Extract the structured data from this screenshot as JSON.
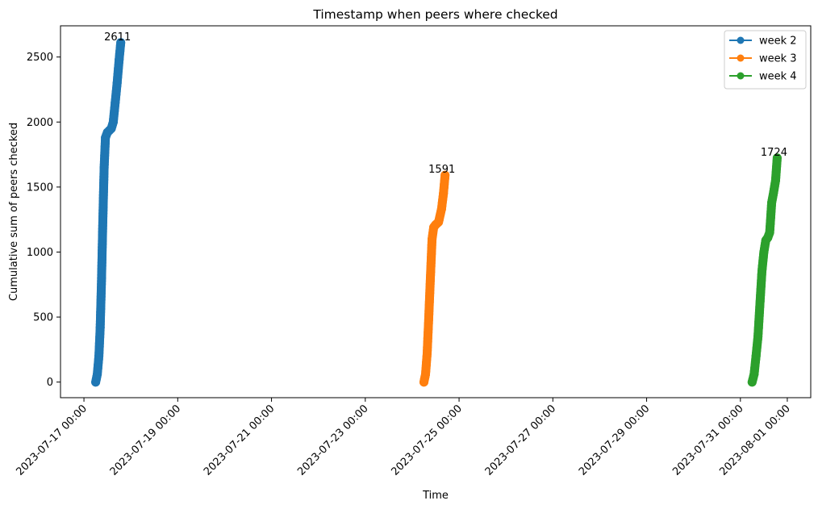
{
  "chart_data": {
    "type": "line",
    "title": "Timestamp when peers where checked",
    "xlabel": "Time",
    "ylabel": "Cumulative sum of peers checked",
    "xlim": [
      "2023-07-16 12:00",
      "2023-08-01 12:00"
    ],
    "ylim": [
      -120,
      2740
    ],
    "xticks": [
      "2023-07-17 00:00",
      "2023-07-19 00:00",
      "2023-07-21 00:00",
      "2023-07-23 00:00",
      "2023-07-25 00:00",
      "2023-07-27 00:00",
      "2023-07-29 00:00",
      "2023-07-31 00:00",
      "2023-08-01 00:00"
    ],
    "yticks": [
      0,
      500,
      1000,
      1500,
      2000,
      2500
    ],
    "grid": false,
    "legend_position": "top-right",
    "series": [
      {
        "name": "week 2",
        "color": "#1f77b4",
        "marker": "circle",
        "points": [
          [
            "2023-07-17 06:00",
            0
          ],
          [
            "2023-07-17 06:50",
            60
          ],
          [
            "2023-07-17 07:40",
            200
          ],
          [
            "2023-07-17 08:20",
            420
          ],
          [
            "2023-07-17 09:00",
            800
          ],
          [
            "2023-07-17 09:40",
            1250
          ],
          [
            "2023-07-17 10:20",
            1650
          ],
          [
            "2023-07-17 11:00",
            1880
          ],
          [
            "2023-07-17 12:00",
            1920
          ],
          [
            "2023-07-17 14:00",
            1950
          ],
          [
            "2023-07-17 15:00",
            2000
          ],
          [
            "2023-07-17 16:00",
            2150
          ],
          [
            "2023-07-17 17:00",
            2300
          ],
          [
            "2023-07-17 18:00",
            2480
          ],
          [
            "2023-07-17 18:50",
            2611
          ]
        ]
      },
      {
        "name": "week 3",
        "color": "#ff7f0e",
        "marker": "circle",
        "points": [
          [
            "2023-07-24 06:00",
            0
          ],
          [
            "2023-07-24 06:50",
            60
          ],
          [
            "2023-07-24 07:40",
            220
          ],
          [
            "2023-07-24 08:30",
            500
          ],
          [
            "2023-07-24 09:20",
            800
          ],
          [
            "2023-07-24 10:10",
            1100
          ],
          [
            "2023-07-24 11:00",
            1190
          ],
          [
            "2023-07-24 12:00",
            1210
          ],
          [
            "2023-07-24 13:30",
            1230
          ],
          [
            "2023-07-24 15:00",
            1330
          ],
          [
            "2023-07-24 16:00",
            1450
          ],
          [
            "2023-07-24 16:50",
            1591
          ]
        ]
      },
      {
        "name": "week 4",
        "color": "#2ca02c",
        "marker": "circle",
        "points": [
          [
            "2023-07-31 06:00",
            0
          ],
          [
            "2023-07-31 07:00",
            60
          ],
          [
            "2023-07-31 08:00",
            200
          ],
          [
            "2023-07-31 09:00",
            350
          ],
          [
            "2023-07-31 10:00",
            600
          ],
          [
            "2023-07-31 11:00",
            850
          ],
          [
            "2023-07-31 12:00",
            1000
          ],
          [
            "2023-07-31 13:00",
            1090
          ],
          [
            "2023-07-31 14:00",
            1110
          ],
          [
            "2023-07-31 15:00",
            1150
          ],
          [
            "2023-07-31 16:00",
            1380
          ],
          [
            "2023-07-31 17:00",
            1460
          ],
          [
            "2023-07-31 18:00",
            1550
          ],
          [
            "2023-07-31 18:50",
            1724
          ]
        ]
      }
    ],
    "annotations": [
      {
        "text": "2611",
        "series": 0
      },
      {
        "text": "1591",
        "series": 1
      },
      {
        "text": "1724",
        "series": 2
      }
    ]
  }
}
